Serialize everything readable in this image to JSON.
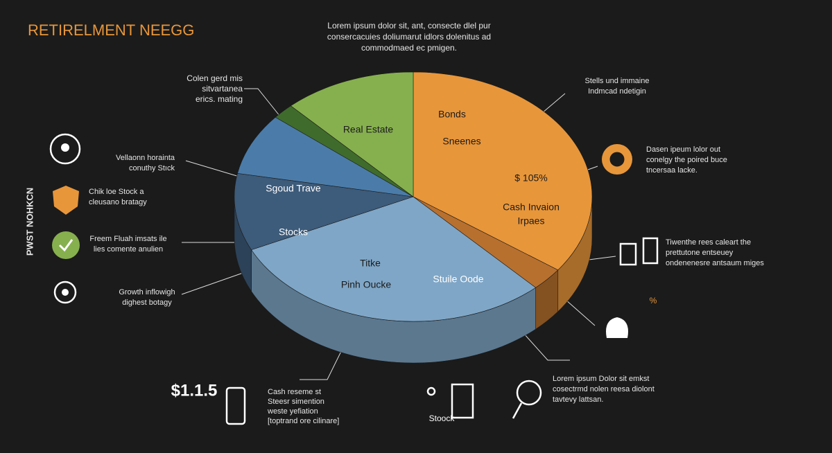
{
  "chart_data": {
    "type": "pie",
    "title": "RETIRELMENT NEEGG",
    "side_title": "PWST NOHKCN",
    "categories": [
      "Bonds",
      null,
      "Stuile Oode",
      "Stocks",
      "Sgoud Trave",
      null,
      "Real Estate"
    ],
    "values": [
      35,
      3,
      30,
      10,
      8,
      2,
      12
    ],
    "colors": [
      "#e8963a",
      "#b8702e",
      "#7fa6c6",
      "#3d5b7a",
      "#4b7ca9",
      "#3f6b2c",
      "#86b04e"
    ],
    "annotations": [
      [
        "Lorem ipsum dolor sit, ant, consecte dlel pur",
        "consercacuies doliumarut idlors dolenitus ad",
        "commodmaed ec pmigen."
      ],
      [
        "Colen gerd mis",
        "sitvartanea",
        "erics. mating"
      ],
      [
        "Vellaonn horainta",
        "conuthy Stıck"
      ],
      [
        "Chik loe Stock a",
        "cleusano bratagy"
      ],
      [
        "Freem Fluah imsats ile",
        "lies comente anulien"
      ],
      [
        "Growth inflowigh",
        "dighest botagy"
      ],
      [
        "Stells und immaine",
        "Indmcad ndetigin"
      ],
      [
        "Dasen ipeum lolor out",
        "conelgy the poired buce",
        "tncersaa lacke."
      ],
      [
        "Tiwenthe rees caleart the",
        "prettutone entseuey",
        "ondenenesre antsaum miges"
      ],
      [
        "%"
      ],
      [
        "Lorem ipsum Dolor  sit emkst",
        "cosectrmd nolen reesa diolont",
        "tavtevy lattsan."
      ],
      [
        "$1.1.5"
      ],
      [
        "Cash reseme st",
        "Steesr simention",
        "weste yefiation",
        "[toptrand ore cilinare]"
      ],
      [
        "Stoock"
      ],
      [
        "Sneenes"
      ],
      [
        "$ 105%"
      ],
      [
        "Cash Invaion",
        "Irpaes"
      ],
      [
        "Titke"
      ],
      [
        "Pinh Oucke"
      ]
    ]
  }
}
